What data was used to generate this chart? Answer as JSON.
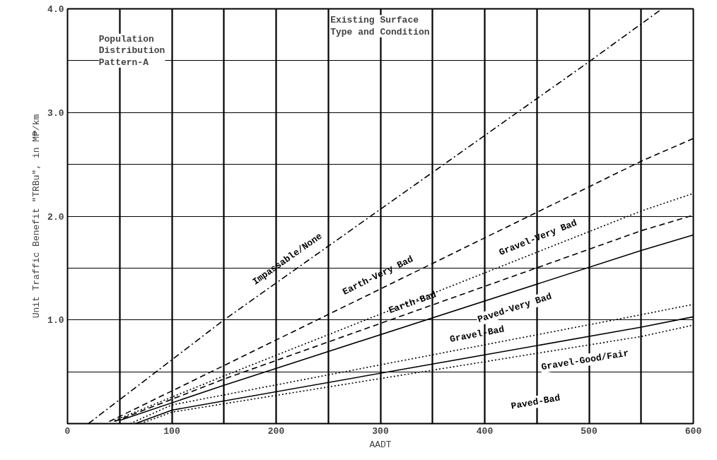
{
  "chart_data": {
    "type": "line",
    "xlabel": "AADT",
    "ylabel": "Unit Traffic Benefit \"TRBu\", in M₱/km",
    "annotations": [
      "Population\nDistribution\nPattern-A",
      "Existing Surface\nType and Condition"
    ],
    "xlim": [
      0,
      600
    ],
    "ylim": [
      0,
      4.0
    ],
    "xticks": [
      0,
      {
        "value": 50,
        "label": null
      },
      100,
      {
        "value": 150,
        "label": null
      },
      200,
      {
        "value": 250,
        "label": null
      },
      300,
      {
        "value": 350,
        "label": null
      },
      400,
      {
        "value": 450,
        "label": null
      },
      500,
      {
        "value": 550,
        "label": null
      },
      600
    ],
    "yticks": [
      {
        "value": 0,
        "label": null
      },
      {
        "value": 0.5,
        "label": null
      },
      {
        "value": 1,
        "label": "1.0"
      },
      {
        "value": 1.5,
        "label": null
      },
      {
        "value": 2,
        "label": "2.0"
      },
      {
        "value": 2.5,
        "label": null
      },
      {
        "value": 3,
        "label": "3.0"
      },
      {
        "value": 3.5,
        "label": null
      },
      {
        "value": 4,
        "label": "4.0"
      }
    ],
    "grid": true,
    "marker": "none",
    "series": [
      {
        "name": "Impassable/None",
        "color": "#000000",
        "line_style": "dashdot",
        "x": [
          20,
          150,
          500,
          570
        ],
        "values": [
          0,
          1.0,
          3.49,
          4.0
        ]
      },
      {
        "name": "Earth-Very Bad",
        "color": "#000000",
        "line_style": "dashed",
        "x": [
          40,
          150,
          550,
          600
        ],
        "values": [
          0.02,
          0.56,
          2.53,
          2.75
        ]
      },
      {
        "name": "Gravel-Very Bad",
        "color": "#000000",
        "line_style": "dotted",
        "x": [
          45,
          150,
          550,
          600
        ],
        "values": [
          0.03,
          0.46,
          2.05,
          2.22
        ]
      },
      {
        "name": "Earth-Bad",
        "color": "#000000",
        "line_style": "dashed",
        "x": [
          45,
          150,
          550,
          600
        ],
        "values": [
          0.02,
          0.43,
          1.86,
          2.01
        ]
      },
      {
        "name": "Paved-Very Bad",
        "color": "#000000",
        "line_style": "solid",
        "x": [
          50,
          150,
          550,
          600
        ],
        "values": [
          0.03,
          0.37,
          1.67,
          1.82
        ]
      },
      {
        "name": "Gravel-Bad",
        "color": "#000000",
        "line_style": "dotted",
        "x": [
          60,
          100,
          550,
          600
        ],
        "values": [
          0,
          0.18,
          1.05,
          1.15
        ]
      },
      {
        "name": "Paved-Bad",
        "color": "#000000",
        "line_style": "solid",
        "x": [
          65,
          100,
          550,
          600
        ],
        "values": [
          0,
          0.13,
          0.93,
          1.03
        ]
      },
      {
        "name": "Gravel-Good/Fair",
        "color": "#000000",
        "line_style": "dotted",
        "x": [
          70,
          100,
          550,
          600
        ],
        "values": [
          0,
          0.11,
          0.84,
          0.95
        ]
      }
    ]
  }
}
